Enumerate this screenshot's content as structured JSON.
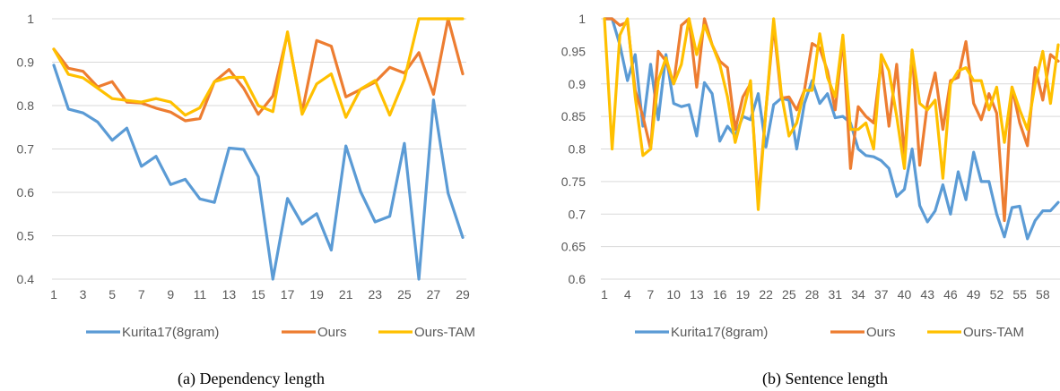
{
  "colors": {
    "kurita": "#5b9bd5",
    "ours": "#ed7d31",
    "ours_tam": "#ffc000",
    "grid": "#d9d9d9"
  },
  "chart_data": [
    {
      "type": "line",
      "caption": "(a)  Dependency length",
      "x": [
        1,
        2,
        3,
        4,
        5,
        6,
        7,
        8,
        9,
        10,
        11,
        12,
        13,
        14,
        15,
        16,
        17,
        18,
        19,
        20,
        21,
        22,
        23,
        24,
        25,
        26,
        27,
        28,
        29
      ],
      "xticks": [
        "1",
        "3",
        "5",
        "7",
        "9",
        "11",
        "13",
        "15",
        "17",
        "19",
        "21",
        "23",
        "25",
        "27",
        "29"
      ],
      "ylim": [
        0.4,
        1.0
      ],
      "yticks": [
        "1",
        "0.9",
        "0.8",
        "0.7",
        "0.6",
        "0.5",
        "0.4"
      ],
      "grid": true,
      "legend_position": "bottom",
      "series": [
        {
          "name": "Kurita17(8gram)",
          "color": "#5b9bd5",
          "values": [
            0.893,
            0.792,
            0.783,
            0.762,
            0.72,
            0.748,
            0.66,
            0.683,
            0.618,
            0.63,
            0.585,
            0.577,
            0.702,
            0.699,
            0.636,
            0.4,
            0.586,
            0.527,
            0.551,
            0.467,
            0.707,
            0.602,
            0.532,
            0.545,
            0.713,
            0.4,
            0.813,
            0.598,
            0.496
          ]
        },
        {
          "name": "Ours",
          "color": "#ed7d31",
          "values": [
            0.93,
            0.886,
            0.879,
            0.843,
            0.855,
            0.808,
            0.806,
            0.794,
            0.785,
            0.765,
            0.77,
            0.855,
            0.883,
            0.84,
            0.78,
            0.822,
            0.966,
            0.785,
            0.95,
            0.937,
            0.82,
            0.837,
            0.854,
            0.888,
            0.875,
            0.922,
            0.826,
            1.0,
            0.873
          ]
        },
        {
          "name": "Ours-TAM",
          "color": "#ffc000",
          "values": [
            0.93,
            0.872,
            0.864,
            0.84,
            0.816,
            0.812,
            0.808,
            0.816,
            0.808,
            0.778,
            0.795,
            0.855,
            0.865,
            0.865,
            0.8,
            0.786,
            0.97,
            0.78,
            0.85,
            0.873,
            0.773,
            0.838,
            0.858,
            0.778,
            0.86,
            1.0,
            1.0,
            1.0,
            1.0
          ]
        }
      ]
    },
    {
      "type": "line",
      "caption": "(b)  Sentence length",
      "x_count": 60,
      "xticks": [
        "1",
        "4",
        "7",
        "10",
        "13",
        "16",
        "19",
        "22",
        "25",
        "28",
        "31",
        "34",
        "37",
        "40",
        "43",
        "46",
        "49",
        "52",
        "55",
        "58"
      ],
      "ylim": [
        0.6,
        1.0
      ],
      "yticks": [
        "1",
        "0.95",
        "0.9",
        "0.85",
        "0.8",
        "0.75",
        "0.7",
        "0.65",
        "0.6"
      ],
      "grid": true,
      "legend_position": "bottom",
      "series": [
        {
          "name": "Kurita17(8gram)",
          "color": "#5b9bd5",
          "values": [
            1.0,
            1.0,
            0.96,
            0.905,
            0.945,
            0.835,
            0.93,
            0.845,
            0.945,
            0.87,
            0.865,
            0.868,
            0.82,
            0.902,
            0.885,
            0.812,
            0.835,
            0.82,
            0.85,
            0.845,
            0.885,
            0.803,
            0.868,
            0.878,
            0.875,
            0.8,
            0.87,
            0.905,
            0.87,
            0.885,
            0.848,
            0.85,
            0.84,
            0.8,
            0.79,
            0.788,
            0.782,
            0.77,
            0.727,
            0.738,
            0.8,
            0.713,
            0.688,
            0.705,
            0.745,
            0.7,
            0.765,
            0.722,
            0.795,
            0.75,
            0.75,
            0.7,
            0.665,
            0.71,
            0.712,
            0.662,
            0.69,
            0.705,
            0.705,
            0.718
          ]
        },
        {
          "name": "Ours",
          "color": "#ed7d31",
          "values": [
            1.0,
            1.0,
            0.99,
            0.995,
            0.89,
            0.85,
            0.8,
            0.95,
            0.935,
            0.9,
            0.99,
            1.0,
            0.895,
            1.0,
            0.96,
            0.935,
            0.925,
            0.83,
            0.88,
            0.9,
            0.72,
            0.86,
            0.99,
            0.878,
            0.88,
            0.86,
            0.89,
            0.962,
            0.955,
            0.92,
            0.86,
            0.97,
            0.77,
            0.865,
            0.85,
            0.84,
            0.935,
            0.835,
            0.93,
            0.79,
            0.95,
            0.775,
            0.87,
            0.917,
            0.83,
            0.905,
            0.91,
            0.965,
            0.87,
            0.845,
            0.885,
            0.855,
            0.69,
            0.895,
            0.84,
            0.805,
            0.925,
            0.875,
            0.945,
            0.935
          ]
        },
        {
          "name": "Ours-TAM",
          "color": "#ffc000",
          "values": [
            1.0,
            0.8,
            0.975,
            1.0,
            0.88,
            0.79,
            0.8,
            0.905,
            0.94,
            0.9,
            0.93,
            1.0,
            0.945,
            0.99,
            0.96,
            0.93,
            0.88,
            0.81,
            0.855,
            0.905,
            0.707,
            0.86,
            1.0,
            0.885,
            0.82,
            0.84,
            0.89,
            0.89,
            0.977,
            0.91,
            0.88,
            0.975,
            0.83,
            0.83,
            0.84,
            0.8,
            0.945,
            0.92,
            0.85,
            0.77,
            0.952,
            0.87,
            0.86,
            0.875,
            0.755,
            0.9,
            0.92,
            0.925,
            0.905,
            0.905,
            0.86,
            0.895,
            0.81,
            0.895,
            0.86,
            0.83,
            0.9,
            0.95,
            0.87,
            0.96
          ]
        }
      ]
    }
  ]
}
